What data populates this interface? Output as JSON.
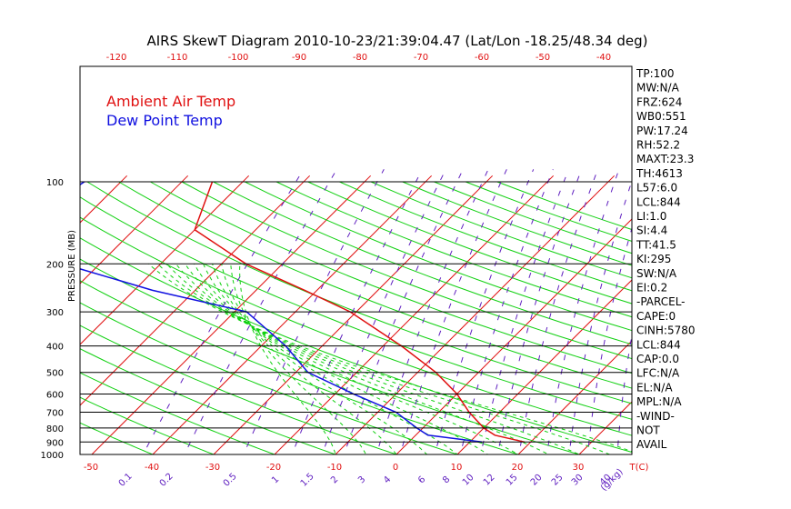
{
  "title": "AIRS SkewT Diagram 2010-10-23/21:39:04.47 (Lat/Lon -18.25/48.34 deg)",
  "ylabel": "PRESSURE (MB)",
  "xlabel_right": "T(C)",
  "mixing_ratio_unit": "(g/kg)",
  "legend": {
    "ambient": "Ambient Air Temp",
    "dewpoint": "Dew Point Temp"
  },
  "colors": {
    "ambient": "#e01010",
    "dewpoint": "#1010e0",
    "isotherm": "#e01010",
    "dry_adiabat": "#10d010",
    "moist_adiabat": "#10d010",
    "mixing_ratio": "#6020c0",
    "frame": "#000000",
    "top_tick": "#e01010",
    "bottom_tick": "#e01010"
  },
  "side_labels": [
    "TP:100",
    "MW:N/A",
    "FRZ:624",
    "WB0:551",
    "PW:17.24",
    "RH:52.2",
    "MAXT:23.3",
    "TH:4613",
    "L57:6.0",
    "LCL:844",
    "LI:1.0",
    "SI:4.4",
    "TT:41.5",
    "KI:295",
    "SW:N/A",
    "EI:0.2",
    "-PARCEL-",
    "CAPE:0",
    "CINH:5780",
    "LCL:844",
    "CAP:0.0",
    "LFC:N/A",
    "EL:N/A",
    "MPL:N/A",
    "-WIND-",
    "NOT",
    "AVAIL"
  ],
  "chart_data": {
    "type": "line",
    "title": "AIRS SkewT Diagram 2010-10-23/21:39:04.47 (Lat/Lon -18.25/48.34 deg)",
    "ylabel": "PRESSURE (MB)",
    "xlabel": "T(C)",
    "y_scale": "log",
    "y_ticks": [
      100,
      200,
      300,
      400,
      500,
      600,
      700,
      800,
      900,
      1000
    ],
    "top_ticks": [
      "-120",
      "-110",
      "-100",
      "-90",
      "-80",
      "-70",
      "-60",
      "-50",
      "-40"
    ],
    "bottom_ticks": [
      "-50",
      "-40",
      "-30",
      "-20",
      "-10",
      "0",
      "10",
      "20",
      "30",
      "T(C)"
    ],
    "mixing_ratio_labels": [
      "0.1",
      "0.2",
      "0.5",
      "1",
      "1.5",
      "2",
      "3",
      "4",
      "6",
      "8",
      "10",
      "12",
      "15",
      "20",
      "25",
      "30",
      "40",
      "(g/kg)"
    ],
    "grid": true,
    "series": [
      {
        "name": "Ambient Air Temp",
        "points": [
          {
            "p": 100,
            "t": -75
          },
          {
            "p": 150,
            "t": -70
          },
          {
            "p": 200,
            "t": -56
          },
          {
            "p": 250,
            "t": -42
          },
          {
            "p": 300,
            "t": -31
          },
          {
            "p": 400,
            "t": -17
          },
          {
            "p": 500,
            "t": -7
          },
          {
            "p": 600,
            "t": 0
          },
          {
            "p": 700,
            "t": 5
          },
          {
            "p": 800,
            "t": 10
          },
          {
            "p": 850,
            "t": 13
          },
          {
            "p": 900,
            "t": 19
          }
        ]
      },
      {
        "name": "Dew Point Temp",
        "points": [
          {
            "p": 100,
            "t": -96
          },
          {
            "p": 150,
            "t": -100
          },
          {
            "p": 200,
            "t": -86
          },
          {
            "p": 250,
            "t": -67
          },
          {
            "p": 300,
            "t": -48
          },
          {
            "p": 400,
            "t": -36
          },
          {
            "p": 500,
            "t": -28
          },
          {
            "p": 600,
            "t": -17
          },
          {
            "p": 700,
            "t": -7
          },
          {
            "p": 800,
            "t": -1
          },
          {
            "p": 850,
            "t": 2
          },
          {
            "p": 900,
            "t": 12
          }
        ]
      }
    ]
  }
}
